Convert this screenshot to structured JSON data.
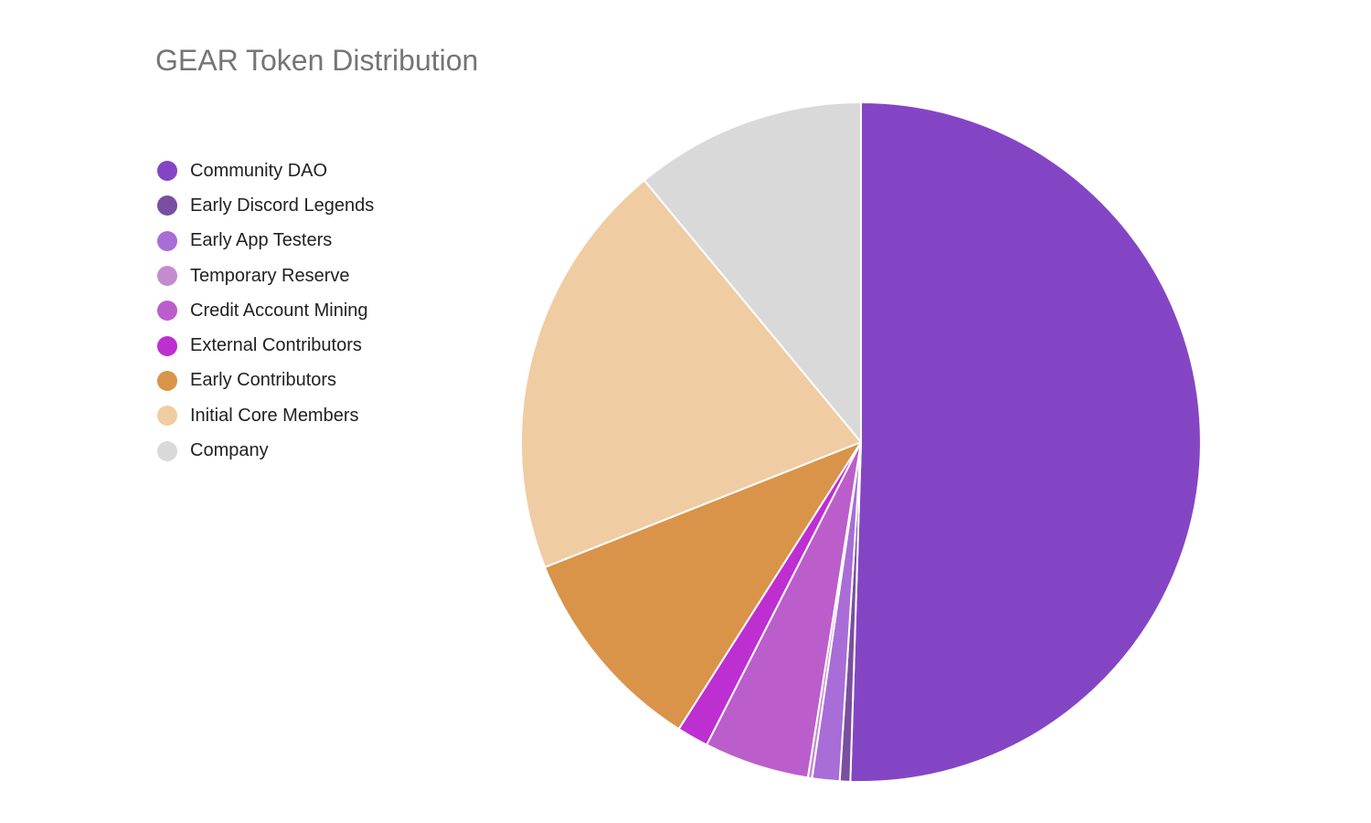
{
  "chart_data": {
    "type": "pie",
    "title": "GEAR Token Distribution",
    "legend_position": "left",
    "start_angle": "12 o'clock",
    "direction": "clockwise",
    "slices": [
      {
        "label": "Community DAO",
        "value": 50.5,
        "color": "#8445c5"
      },
      {
        "label": "Early Discord Legends",
        "value": 0.5,
        "color": "#7a4ea0"
      },
      {
        "label": "Early App Testers",
        "value": 1.3,
        "color": "#a86dd7"
      },
      {
        "label": "Temporary Reserve",
        "value": 0.2,
        "color": "#c58bd1"
      },
      {
        "label": "Credit Account Mining",
        "value": 5.0,
        "color": "#bb5ecb"
      },
      {
        "label": "External Contributors",
        "value": 1.5,
        "color": "#bd2fd1"
      },
      {
        "label": "Early Contributors",
        "value": 10.0,
        "color": "#d9944a"
      },
      {
        "label": "Initial Core Members",
        "value": 20.0,
        "color": "#f0cca3"
      },
      {
        "label": "Company",
        "value": 11.0,
        "color": "#d9d9d9"
      }
    ]
  }
}
